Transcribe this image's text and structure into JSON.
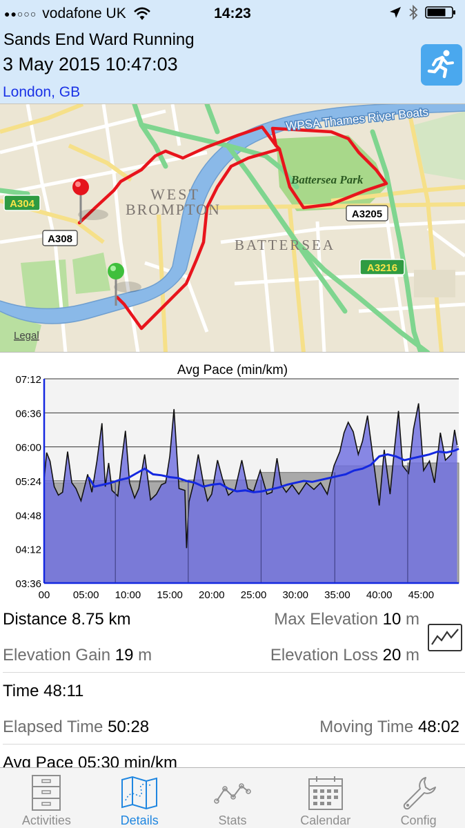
{
  "status_bar": {
    "signal": "●●○○○",
    "carrier": "vodafone UK",
    "time": "14:23"
  },
  "header": {
    "activity_name": "Sands End Ward Running",
    "date": "3 May 2015 10:47:03",
    "location": "London, GB"
  },
  "map": {
    "labels": {
      "river_boats": "WPSA Thames River Boats",
      "park": "Battersea Park",
      "west": "WEST",
      "brompton": "BROMPTON",
      "battersea": "BATTERSEA",
      "legal": "Legal"
    },
    "road_badges": {
      "a304": "A304",
      "a308": "A308",
      "a3205": "A3205",
      "a3216": "A3216"
    },
    "colors": {
      "route": "#e8141c",
      "river": "#8ab9e8",
      "park": "#a8d88a",
      "road_major": "#7fd58f",
      "road_minor": "#ffffff",
      "road_yellow": "#f6e089"
    }
  },
  "chart_data": {
    "type": "area",
    "title": "Avg Pace (min/km)",
    "x_tick_labels": [
      "00",
      "05:00",
      "10:00",
      "15:00",
      "20:00",
      "25:00",
      "30:00",
      "35:00",
      "40:00",
      "45:00"
    ],
    "x_ticks_min": [
      0,
      5,
      10,
      15,
      20,
      25,
      30,
      35,
      40,
      45
    ],
    "y_tick_labels": [
      "07:12",
      "06:36",
      "06:00",
      "05:24",
      "04:48",
      "04:12",
      "03:36"
    ],
    "y_ticks_sec": [
      432,
      396,
      360,
      324,
      288,
      252,
      216
    ],
    "xlim_min": [
      0,
      49.5
    ],
    "ylim_sec": [
      216,
      432
    ],
    "series": [
      {
        "kind": "pace",
        "x_min": [
          0,
          0.3,
          0.7,
          1.2,
          1.7,
          2.2,
          2.8,
          3.3,
          3.8,
          4.4,
          5.2,
          5.7,
          6.3,
          6.9,
          7.3,
          7.7,
          8.1,
          8.8,
          9.2,
          9.7,
          10.2,
          10.8,
          11.3,
          12.0,
          12.7,
          13.4,
          14.0,
          14.5,
          15.0,
          15.5,
          16.1,
          16.8,
          17.0,
          17.3,
          17.8,
          18.4,
          19.0,
          19.5,
          20.0,
          20.7,
          21.3,
          22.0,
          22.8,
          23.6,
          24.3,
          25.0,
          25.8,
          26.6,
          27.2,
          27.8,
          28.3,
          28.9,
          29.6,
          30.4,
          31.3,
          32.2,
          33.0,
          33.8,
          34.6,
          35.3,
          35.8,
          36.3,
          36.9,
          37.5,
          38.0,
          38.6,
          39.3,
          40.0,
          40.6,
          41.3,
          41.8,
          42.3,
          42.8,
          43.5,
          44.1,
          44.7,
          45.3,
          46.0,
          46.6,
          47.3,
          47.9,
          48.6,
          49.0,
          49.3
        ],
        "pace_sec": [
          326,
          354,
          345,
          318,
          309,
          312,
          355,
          322,
          316,
          303,
          331,
          312,
          345,
          385,
          318,
          343,
          314,
          308,
          342,
          377,
          322,
          306,
          316,
          352,
          304,
          310,
          320,
          322,
          350,
          400,
          316,
          314,
          253,
          302,
          320,
          352,
          322,
          303,
          310,
          346,
          326,
          309,
          315,
          346,
          316,
          313,
          335,
          310,
          312,
          348,
          320,
          312,
          320,
          310,
          322,
          315,
          322,
          310,
          340,
          355,
          375,
          386,
          376,
          352,
          366,
          393,
          346,
          298,
          357,
          310,
          356,
          398,
          340,
          332,
          379,
          406,
          335,
          345,
          322,
          375,
          346,
          352,
          378,
          362
        ]
      },
      {
        "kind": "moving_average",
        "x_min": [
          5.3,
          6.0,
          7.0,
          8.0,
          9.0,
          10.0,
          11.0,
          12.0,
          13.0,
          14.0,
          15.0,
          16.0,
          17.0,
          18.0,
          19.0,
          20.0,
          21.0,
          22.0,
          23.0,
          24.0,
          25.0,
          26.0,
          27.0,
          28.0,
          29.0,
          30.0,
          31.0,
          32.0,
          33.0,
          34.0,
          35.0,
          36.0,
          37.0,
          38.0,
          39.0,
          40.0,
          41.0,
          42.0,
          43.0,
          44.0,
          45.0,
          46.0,
          47.0,
          48.0,
          49.0,
          49.5
        ],
        "pace_sec": [
          328,
          318,
          320,
          322,
          325,
          327,
          332,
          337,
          331,
          330,
          328,
          327,
          324,
          322,
          318,
          320,
          321,
          316,
          313,
          314,
          312,
          313,
          315,
          317,
          320,
          322,
          324,
          323,
          325,
          327,
          329,
          331,
          335,
          337,
          341,
          350,
          352,
          350,
          346,
          348,
          350,
          352,
          355,
          354,
          356,
          358
        ]
      },
      {
        "kind": "split_steps",
        "x_min": [
          0,
          8.5,
          17.2,
          25.9,
          34.7,
          43.4,
          49.5
        ],
        "pace_sec": [
          322,
          323,
          325,
          333,
          340,
          343
        ]
      }
    ]
  },
  "stats": {
    "distance_label": "Distance",
    "distance_value": "8.75",
    "distance_unit": "km",
    "max_elev_label": "Max Elevation",
    "max_elev_value": "10",
    "max_elev_unit": "m",
    "elev_gain_label": "Elevation Gain",
    "elev_gain_value": "19",
    "elev_gain_unit": "m",
    "elev_loss_label": "Elevation Loss",
    "elev_loss_value": "20",
    "elev_loss_unit": "m",
    "time_label": "Time",
    "time_value": "48:11",
    "elapsed_label": "Elapsed Time",
    "elapsed_value": "50:28",
    "moving_label": "Moving Time",
    "moving_value": "48:02",
    "avg_pace_label": "Avg Pace",
    "avg_pace_value": "05:30",
    "avg_pace_unit": "min/km"
  },
  "tabs": [
    {
      "label": "Activities",
      "icon": "cabinet-icon"
    },
    {
      "label": "Details",
      "icon": "map-route-icon"
    },
    {
      "label": "Stats",
      "icon": "line-graph-icon"
    },
    {
      "label": "Calendar",
      "icon": "calendar-icon"
    },
    {
      "label": "Config",
      "icon": "wrench-icon"
    }
  ],
  "colors": {
    "header_bg": "#d6e9fa",
    "accent": "#1f86e0",
    "location": "#1a32e6",
    "pace_fill": "#7777dd",
    "moving_avg": "#1428e0"
  }
}
